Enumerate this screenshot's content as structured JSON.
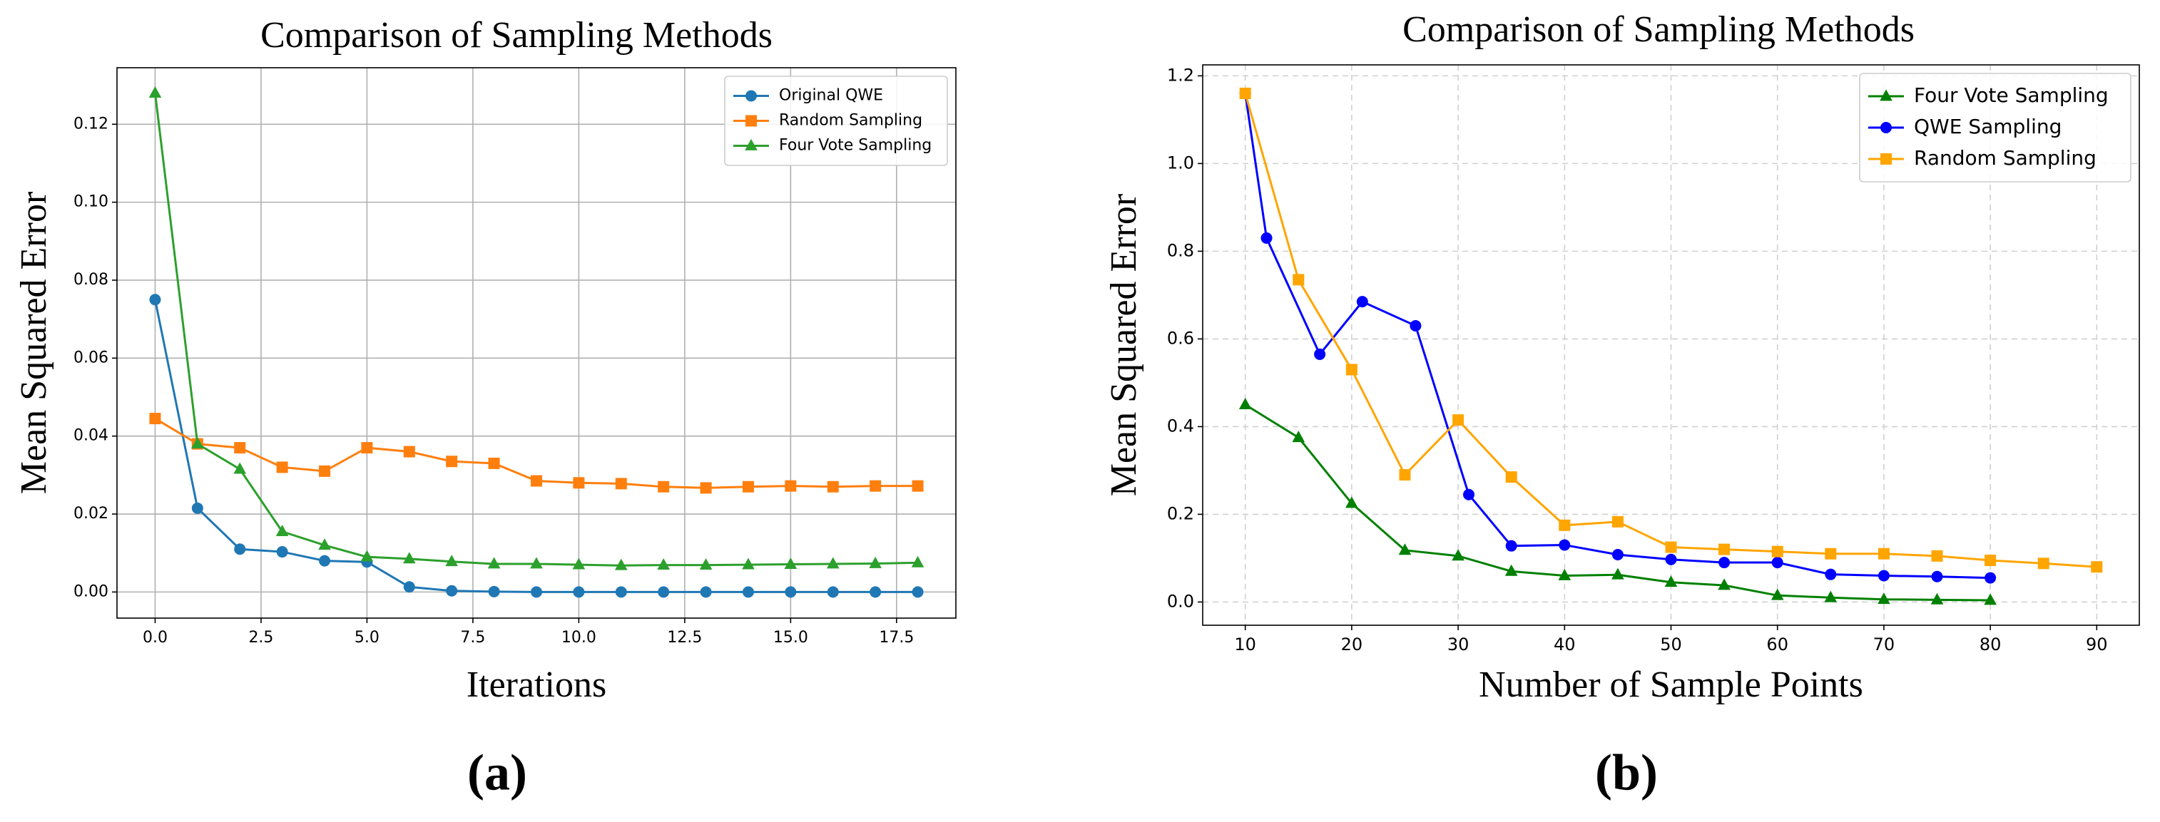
{
  "chart_data": [
    {
      "type": "line",
      "title": "Comparison of Sampling Methods",
      "xlabel": "Iterations",
      "ylabel": "Mean Squared Error",
      "caption": "(a)",
      "x": [
        0,
        1,
        2,
        3,
        4,
        5,
        6,
        7,
        8,
        9,
        10,
        11,
        12,
        13,
        14,
        15,
        16,
        17,
        18
      ],
      "series": [
        {
          "name": "Original QWE",
          "color": "#1f77b4",
          "marker": "circle",
          "values": [
            0.075,
            0.0215,
            0.011,
            0.0103,
            0.008,
            0.0077,
            0.0013,
            0.0003,
            0.0001,
            0,
            0,
            0,
            0,
            0,
            0,
            0,
            0,
            0,
            0
          ]
        },
        {
          "name": "Random Sampling",
          "color": "#ff7f0e",
          "marker": "square",
          "values": [
            0.0445,
            0.038,
            0.037,
            0.032,
            0.031,
            0.037,
            0.036,
            0.0335,
            0.033,
            0.0285,
            0.028,
            0.0278,
            0.027,
            0.0267,
            0.027,
            0.0272,
            0.027,
            0.0272,
            0.0272
          ]
        },
        {
          "name": "Four Vote Sampling",
          "color": "#2ca02c",
          "marker": "triangle",
          "values": [
            0.128,
            0.038,
            0.0315,
            0.0155,
            0.012,
            0.009,
            0.0085,
            0.0078,
            0.0072,
            0.0072,
            0.007,
            0.0068,
            0.0069,
            0.0069,
            0.007,
            0.0071,
            0.0072,
            0.0073,
            0.0075
          ]
        }
      ],
      "xlim": [
        -0.9,
        18.9
      ],
      "xticks": [
        {
          "value": 0,
          "label": "0.0"
        },
        2.5,
        {
          "value": 5,
          "label": "5.0"
        },
        7.5,
        {
          "value": 10,
          "label": "10.0"
        },
        12.5,
        {
          "value": 15,
          "label": "15.0"
        },
        17.5
      ],
      "ylim": [
        -0.0067,
        0.1345
      ],
      "yticks": [
        {
          "value": 0,
          "label": "0.00"
        },
        {
          "value": 0.02,
          "label": "0.02"
        },
        {
          "value": 0.04,
          "label": "0.04"
        },
        {
          "value": 0.06,
          "label": "0.06"
        },
        {
          "value": 0.08,
          "label": "0.08"
        },
        {
          "value": 0.1,
          "label": "0.10"
        },
        {
          "value": 0.12,
          "label": "0.12"
        }
      ],
      "grid": "solid",
      "legend": "upper right"
    },
    {
      "type": "line",
      "title": "Comparison of Sampling Methods",
      "xlabel": "Number of Sample Points",
      "ylabel": "Mean Squared Error",
      "caption": "(b)",
      "series": [
        {
          "name": "Four Vote Sampling",
          "color": "green",
          "marker": "triangle",
          "x": [
            10,
            15,
            20,
            25,
            30,
            35,
            40,
            45,
            50,
            55,
            60,
            65,
            70,
            75,
            80
          ],
          "values": [
            0.45,
            0.375,
            0.225,
            0.118,
            0.105,
            0.07,
            0.06,
            0.062,
            0.045,
            0.038,
            0.015,
            0.01,
            0.006,
            0.005,
            0.004
          ]
        },
        {
          "name": "QWE Sampling",
          "color": "blue",
          "marker": "circle",
          "x": [
            10,
            12,
            17,
            21,
            26,
            31,
            35,
            40,
            45,
            50,
            55,
            60,
            65,
            70,
            75,
            80
          ],
          "values": [
            1.16,
            0.83,
            0.565,
            0.685,
            0.63,
            0.245,
            0.128,
            0.13,
            0.108,
            0.097,
            0.09,
            0.09,
            0.063,
            0.06,
            0.058,
            0.055
          ]
        },
        {
          "name": "Random Sampling",
          "color": "orange",
          "marker": "square",
          "x": [
            10,
            15,
            20,
            25,
            30,
            35,
            40,
            45,
            50,
            55,
            60,
            65,
            70,
            75,
            80,
            85,
            90
          ],
          "values": [
            1.16,
            0.735,
            0.53,
            0.29,
            0.415,
            0.285,
            0.175,
            0.183,
            0.125,
            0.12,
            0.115,
            0.11,
            0.11,
            0.105,
            0.095,
            0.088,
            0.08
          ]
        }
      ],
      "xlim": [
        6,
        94
      ],
      "xticks": [
        10,
        20,
        30,
        40,
        50,
        60,
        70,
        80,
        90
      ],
      "ylim": [
        -0.053,
        1.225
      ],
      "yticks": [
        {
          "value": 0,
          "label": "0.0"
        },
        0.2,
        0.4,
        0.6,
        0.8,
        {
          "value": 1,
          "label": "1.0"
        },
        1.2
      ],
      "grid": "dashed",
      "legend": "upper right"
    }
  ]
}
